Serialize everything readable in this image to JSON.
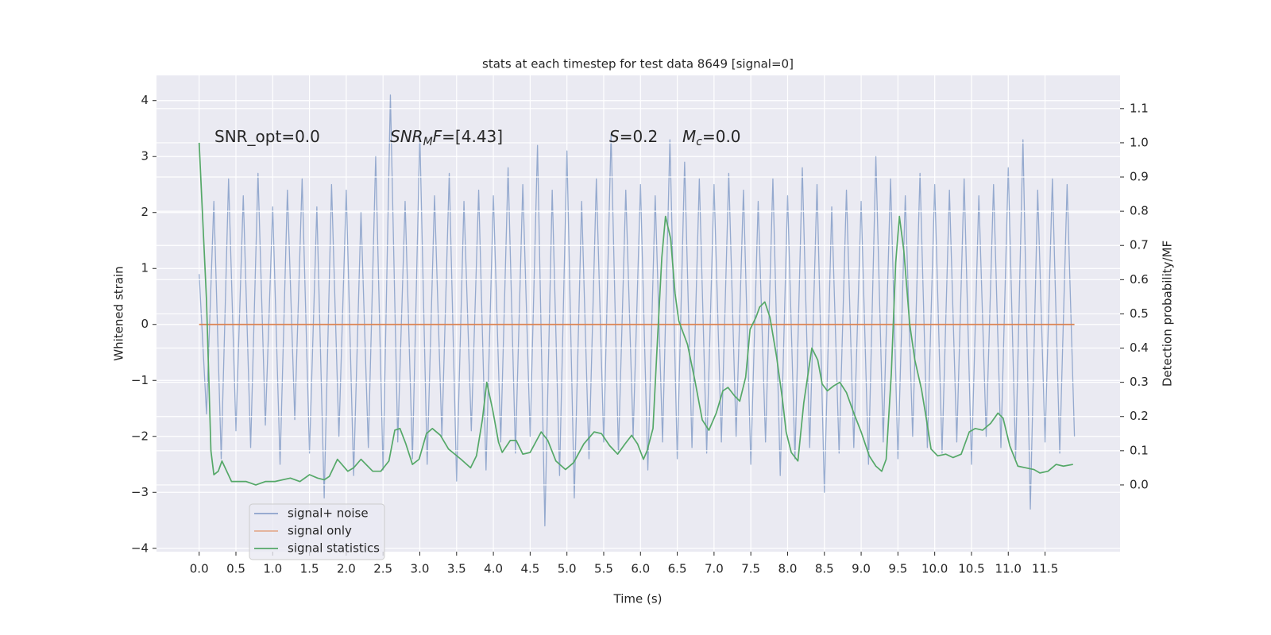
{
  "chart_data": {
    "type": "line",
    "title": "stats at each timestep for test data 8649 [signal=0]",
    "x_label": "Time (s)",
    "y_label": "Whitened strain",
    "y2_label": "Detection probability/MF",
    "xlim": [
      -0.58,
      12.52
    ],
    "ylim": [
      -4.06,
      4.45
    ],
    "y2lim": [
      -0.195,
      1.197
    ],
    "xticks": [
      {
        "value": 0,
        "label": "0.0"
      },
      0.5,
      {
        "value": 1,
        "label": "1.0"
      },
      1.5,
      {
        "value": 2,
        "label": "2.0"
      },
      2.5,
      {
        "value": 3,
        "label": "3.0"
      },
      3.5,
      {
        "value": 4,
        "label": "4.0"
      },
      4.5,
      {
        "value": 5,
        "label": "5.0"
      },
      5.5,
      {
        "value": 6,
        "label": "6.0"
      },
      6.5,
      {
        "value": 7,
        "label": "7.0"
      },
      7.5,
      {
        "value": 8,
        "label": "8.0"
      },
      8.5,
      {
        "value": 9,
        "label": "9.0"
      },
      9.5,
      {
        "value": 10,
        "label": "10.0"
      },
      10.5,
      {
        "value": 11,
        "label": "11.0"
      },
      11.5
    ],
    "yticks": [
      {
        "value": -4,
        "label": "−4"
      },
      {
        "value": -3,
        "label": "−3"
      },
      {
        "value": -2,
        "label": "−2"
      },
      {
        "value": -1,
        "label": "−1"
      },
      0,
      1,
      2,
      3,
      4
    ],
    "y2ticks": [
      {
        "value": 0,
        "label": "0.0"
      },
      0.1,
      0.2,
      0.3,
      0.4,
      0.5,
      0.6,
      0.7,
      0.8,
      0.9,
      {
        "value": 1,
        "label": "1.0"
      },
      1.1
    ],
    "grid": true,
    "legend": "lower left",
    "annotations": [
      [
        "SNR_opt=0.0"
      ],
      [
        "SNR",
        "M",
        "F",
        "=[4.43]"
      ],
      [
        "S",
        "=0.2"
      ],
      [
        "M",
        "c",
        "=0.0"
      ]
    ],
    "series": [
      {
        "name": "signal+ noise",
        "color": "#4c72b0",
        "x": [
          0,
          0.1,
          0.2,
          0.3,
          0.4,
          0.5,
          0.6,
          0.7,
          0.8,
          0.9,
          1,
          1.1,
          1.2,
          1.3,
          1.4,
          1.5,
          1.6,
          1.7,
          1.8,
          1.9,
          2,
          2.1,
          2.2,
          2.3,
          2.4,
          2.5,
          2.6,
          2.7,
          2.8,
          2.9,
          3,
          3.1,
          3.2,
          3.3,
          3.4,
          3.5,
          3.6,
          3.7,
          3.8,
          3.9,
          4,
          4.1,
          4.2,
          4.3,
          4.4,
          4.5,
          4.6,
          4.7,
          4.8,
          4.9,
          5,
          5.1,
          5.2,
          5.3,
          5.4,
          5.5,
          5.6,
          5.7,
          5.8,
          5.9,
          6,
          6.1,
          6.2,
          6.3,
          6.4,
          6.5,
          6.6,
          6.7,
          6.8,
          6.9,
          7,
          7.1,
          7.2,
          7.3,
          7.4,
          7.5,
          7.6,
          7.7,
          7.8,
          7.9,
          8,
          8.1,
          8.2,
          8.3,
          8.4,
          8.5,
          8.6,
          8.7,
          8.8,
          8.9,
          9,
          9.1,
          9.2,
          9.3,
          9.4,
          9.5,
          9.6,
          9.7,
          9.8,
          9.9,
          10,
          10.1,
          10.2,
          10.3,
          10.4,
          10.5,
          10.6,
          10.7,
          10.8,
          10.9,
          11,
          11.1,
          11.2,
          11.3,
          11.4,
          11.5,
          11.6,
          11.7,
          11.8,
          11.9
        ],
        "values": [
          0.9,
          -1.6,
          2.2,
          -2.4,
          2.6,
          -1.9,
          2.3,
          -2.2,
          2.7,
          -1.8,
          2.1,
          -2.5,
          2.4,
          -1.7,
          2.6,
          -2.3,
          2.1,
          -3.1,
          2.5,
          -2.0,
          2.4,
          -2.7,
          2.0,
          -2.2,
          3.0,
          -2.6,
          4.1,
          -2.1,
          2.2,
          -2.4,
          3.4,
          -2.5,
          2.3,
          -2.0,
          2.7,
          -2.8,
          2.2,
          -1.9,
          2.4,
          -2.6,
          2.3,
          -2.1,
          2.8,
          -2.3,
          2.5,
          -2.0,
          3.2,
          -3.6,
          2.4,
          -2.7,
          3.1,
          -3.1,
          2.2,
          -2.4,
          2.6,
          -2.1,
          3.4,
          -2.3,
          2.4,
          -2.0,
          2.5,
          -2.6,
          2.3,
          -2.1,
          3.3,
          -2.4,
          2.9,
          -2.2,
          2.6,
          -2.3,
          2.5,
          -2.1,
          2.7,
          -2.0,
          2.4,
          -2.5,
          2.2,
          -2.1,
          2.6,
          -2.7,
          2.3,
          -2.4,
          2.8,
          -2.2,
          2.5,
          -3.0,
          2.1,
          -2.3,
          2.4,
          -2.2,
          2.2,
          -2.5,
          3.0,
          -2.1,
          2.6,
          -2.4,
          2.3,
          -2.0,
          2.7,
          -2.2,
          2.5,
          -2.3,
          2.4,
          -2.1,
          2.6,
          -2.5,
          2.3,
          -2.0,
          2.5,
          -2.2,
          2.8,
          -2.4,
          3.3,
          -3.3,
          2.4,
          -2.1,
          2.6,
          -2.3,
          2.5,
          -2.0
        ]
      },
      {
        "name": "signal only",
        "color": "#dd8452",
        "x": [
          0,
          11.9
        ],
        "values": [
          0,
          0
        ]
      },
      {
        "name": "signal statistics",
        "color": "#55a868",
        "axis": "y2",
        "x": [
          0,
          0.1,
          0.16,
          0.2,
          0.26,
          0.31,
          0.44,
          0.53,
          0.64,
          0.77,
          0.9,
          1.03,
          1.24,
          1.37,
          1.5,
          1.61,
          1.7,
          1.77,
          1.88,
          2.02,
          2.1,
          2.2,
          2.36,
          2.47,
          2.58,
          2.66,
          2.73,
          2.81,
          2.9,
          2.99,
          3.09,
          3.17,
          3.28,
          3.39,
          3.56,
          3.69,
          3.77,
          3.85,
          3.91,
          3.99,
          4.07,
          4.12,
          4.23,
          4.31,
          4.4,
          4.5,
          4.65,
          4.74,
          4.85,
          4.98,
          5.09,
          5.23,
          5.37,
          5.47,
          5.58,
          5.69,
          5.79,
          5.88,
          5.96,
          6.04,
          6.09,
          6.17,
          6.23,
          6.29,
          6.34,
          6.41,
          6.47,
          6.52,
          6.64,
          6.74,
          6.84,
          6.93,
          7.03,
          7.12,
          7.19,
          7.28,
          7.35,
          7.43,
          7.49,
          7.57,
          7.62,
          7.69,
          7.76,
          7.85,
          7.93,
          7.98,
          8.05,
          8.14,
          8.22,
          8.33,
          8.41,
          8.47,
          8.54,
          8.63,
          8.71,
          8.8,
          8.9,
          9,
          9.11,
          9.2,
          9.28,
          9.34,
          9.41,
          9.47,
          9.52,
          9.58,
          9.66,
          9.73,
          9.82,
          9.9,
          9.95,
          10.04,
          10.15,
          10.25,
          10.36,
          10.47,
          10.55,
          10.65,
          10.76,
          10.86,
          10.93,
          11.02,
          11.13,
          11.24,
          11.35,
          11.43,
          11.54,
          11.65,
          11.75,
          11.88
        ],
        "values": [
          1.0,
          0.54,
          0.1,
          0.03,
          0.04,
          0.07,
          0.01,
          0.01,
          0.01,
          0.0,
          0.01,
          0.01,
          0.02,
          0.01,
          0.03,
          0.02,
          0.015,
          0.025,
          0.075,
          0.04,
          0.05,
          0.075,
          0.04,
          0.04,
          0.07,
          0.16,
          0.165,
          0.12,
          0.06,
          0.075,
          0.15,
          0.165,
          0.145,
          0.105,
          0.075,
          0.05,
          0.085,
          0.19,
          0.3,
          0.22,
          0.125,
          0.095,
          0.13,
          0.13,
          0.09,
          0.095,
          0.155,
          0.13,
          0.07,
          0.045,
          0.065,
          0.12,
          0.155,
          0.15,
          0.115,
          0.09,
          0.12,
          0.145,
          0.12,
          0.075,
          0.1,
          0.165,
          0.42,
          0.665,
          0.785,
          0.72,
          0.56,
          0.48,
          0.41,
          0.305,
          0.19,
          0.16,
          0.21,
          0.275,
          0.285,
          0.26,
          0.245,
          0.315,
          0.455,
          0.49,
          0.52,
          0.535,
          0.49,
          0.375,
          0.25,
          0.155,
          0.095,
          0.07,
          0.24,
          0.4,
          0.365,
          0.295,
          0.275,
          0.29,
          0.3,
          0.27,
          0.21,
          0.155,
          0.085,
          0.055,
          0.04,
          0.075,
          0.325,
          0.65,
          0.785,
          0.685,
          0.47,
          0.365,
          0.28,
          0.175,
          0.105,
          0.085,
          0.09,
          0.08,
          0.09,
          0.155,
          0.165,
          0.16,
          0.18,
          0.21,
          0.195,
          0.115,
          0.055,
          0.05,
          0.045,
          0.035,
          0.04,
          0.06,
          0.055,
          0.06
        ]
      }
    ]
  }
}
